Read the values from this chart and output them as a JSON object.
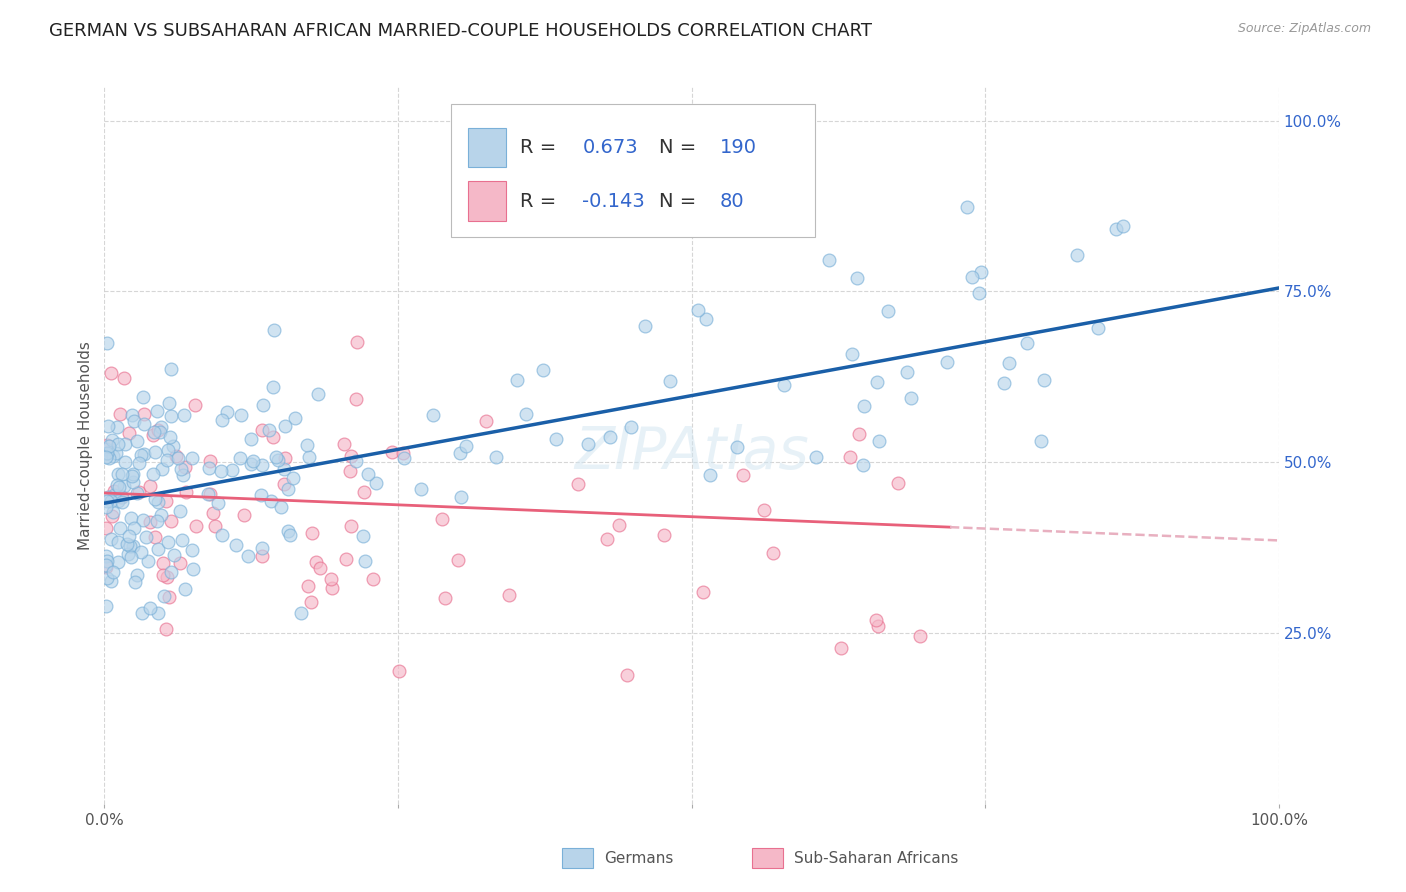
{
  "title": "GERMAN VS SUBSAHARAN AFRICAN MARRIED-COUPLE HOUSEHOLDS CORRELATION CHART",
  "source": "Source: ZipAtlas.com",
  "ylabel": "Married-couple Households",
  "ytick_labels": [
    "25.0%",
    "50.0%",
    "75.0%",
    "100.0%"
  ],
  "ytick_positions": [
    0.25,
    0.5,
    0.75,
    1.0
  ],
  "xlim": [
    0.0,
    1.0
  ],
  "ylim": [
    0.0,
    1.05
  ],
  "german_color": "#b8d4ea",
  "german_edge_color": "#7ab0d8",
  "subsaharan_color": "#f5b8c8",
  "subsaharan_edge_color": "#e87090",
  "german_line_color": "#1a5fa8",
  "subsaharan_line_color": "#e8607a",
  "subsaharan_line_dashed_color": "#e8b0c0",
  "legend_text_color": "#3366cc",
  "R_german": 0.673,
  "N_german": 190,
  "R_subsaharan": -0.143,
  "N_subsaharan": 80,
  "watermark": "ZIPAtlas",
  "background_color": "#ffffff",
  "grid_color": "#cccccc",
  "title_fontsize": 13,
  "axis_label_fontsize": 11,
  "tick_fontsize": 11,
  "legend_fontsize": 14,
  "marker_size": 85,
  "marker_alpha": 0.65,
  "german_line_x0": 0.0,
  "german_line_y0": 0.44,
  "german_line_x1": 1.0,
  "german_line_y1": 0.755,
  "subsaharan_line_x0": 0.0,
  "subsaharan_line_y0": 0.455,
  "subsaharan_line_x1": 0.72,
  "subsaharan_line_y1": 0.405
}
